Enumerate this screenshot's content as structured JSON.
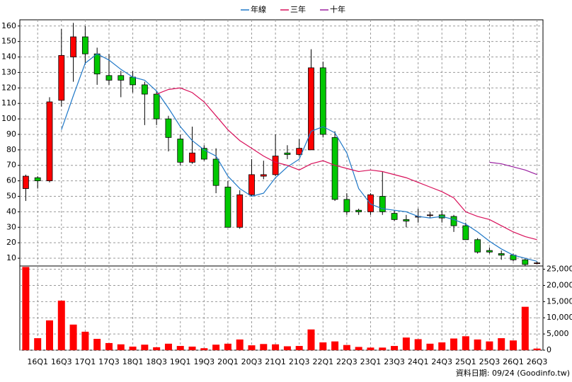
{
  "chart_data": [
    {
      "type": "candlestick",
      "categories": [
        null,
        "16Q1",
        null,
        "16Q3",
        null,
        "17Q1",
        null,
        "17Q3",
        null,
        "18Q1",
        null,
        "18Q3",
        null,
        "19Q1",
        null,
        "19Q3",
        null,
        "20Q1",
        null,
        "20Q3",
        null,
        "21Q1",
        null,
        "21Q3",
        null,
        "22Q1",
        null,
        "22Q3",
        null,
        "23Q1",
        null,
        "23Q3",
        null,
        "24Q1",
        null,
        "24Q3",
        null,
        "25Q1",
        null,
        "25Q3",
        null,
        "26Q1",
        null,
        "26Q3"
      ],
      "open": [
        55,
        62,
        60,
        112,
        140,
        153,
        142,
        128,
        128,
        127,
        122,
        116,
        100,
        87,
        72,
        81,
        74,
        56,
        30,
        51,
        63,
        64,
        78,
        77,
        80,
        133,
        88,
        48,
        41,
        40,
        50,
        39,
        35,
        37,
        38,
        38,
        37,
        31,
        22,
        15,
        13,
        12,
        9,
        7
      ],
      "close": [
        63,
        60,
        111,
        141,
        153,
        142,
        129,
        125,
        125,
        122,
        116,
        100,
        88,
        72,
        78,
        74,
        57,
        30,
        51,
        64,
        64,
        76,
        77,
        81,
        133,
        90,
        48,
        40,
        40,
        51,
        40,
        35,
        34,
        37,
        38,
        36,
        31,
        22,
        14,
        14,
        12,
        9,
        6,
        7
      ],
      "high": [
        64,
        63,
        114,
        158,
        162,
        160,
        146,
        142,
        131,
        131,
        124,
        118,
        102,
        90,
        95,
        83,
        81,
        60,
        54,
        74,
        73,
        90,
        83,
        87,
        145,
        137,
        92,
        52,
        42,
        52,
        66,
        41,
        38,
        42,
        40,
        41,
        38,
        33,
        23,
        17,
        15,
        13,
        10,
        8
      ],
      "low": [
        47,
        55,
        59,
        108,
        124,
        135,
        122,
        122,
        114,
        117,
        96,
        96,
        79,
        70,
        71,
        73,
        52,
        30,
        29,
        50,
        61,
        63,
        74,
        76,
        80,
        88,
        47,
        38,
        38,
        38,
        38,
        34,
        30,
        33,
        36,
        33,
        27,
        22,
        13,
        13,
        9,
        8,
        5,
        6
      ],
      "up_color": "#ff0000",
      "down_color": "#00c800",
      "series": [
        {
          "name": "年線",
          "color": "#1f78c8",
          "values": [
            null,
            null,
            null,
            93,
            115,
            136,
            142,
            138,
            132,
            127,
            125,
            118,
            107,
            95,
            86,
            80,
            76,
            63,
            55,
            50,
            52,
            62,
            69,
            74,
            92,
            95,
            91,
            78,
            55,
            45,
            42,
            41,
            40,
            37,
            36,
            37,
            35,
            32,
            27,
            21,
            16,
            12,
            10,
            8
          ]
        },
        {
          "name": "三年",
          "color": "#d8105a",
          "values": [
            null,
            null,
            null,
            null,
            null,
            null,
            null,
            null,
            null,
            null,
            null,
            116,
            119,
            120,
            117,
            111,
            102,
            93,
            86,
            81,
            76,
            72,
            70,
            67,
            71,
            73,
            70,
            68,
            66,
            67,
            66,
            64,
            62,
            59,
            56,
            53,
            49,
            40,
            37,
            35,
            31,
            27,
            24,
            22
          ]
        },
        {
          "name": "十年",
          "color": "#9a20a0",
          "values": [
            null,
            null,
            null,
            null,
            null,
            null,
            null,
            null,
            null,
            null,
            null,
            null,
            null,
            null,
            null,
            null,
            null,
            null,
            null,
            null,
            null,
            null,
            null,
            null,
            null,
            null,
            null,
            null,
            null,
            null,
            null,
            null,
            null,
            null,
            null,
            null,
            null,
            null,
            null,
            72,
            71,
            69,
            67,
            64
          ]
        }
      ],
      "ylim": [
        5,
        164
      ],
      "yticks": [
        10,
        20,
        30,
        40,
        50,
        60,
        70,
        80,
        90,
        100,
        110,
        120,
        130,
        140,
        150,
        160
      ],
      "grid": true
    },
    {
      "type": "bar",
      "values": [
        25700,
        3700,
        9200,
        15300,
        7900,
        5700,
        3500,
        2200,
        1800,
        1100,
        1700,
        900,
        2000,
        1300,
        1100,
        600,
        1700,
        2000,
        3300,
        1500,
        1900,
        1800,
        1200,
        1300,
        6400,
        2400,
        2700,
        1600,
        1000,
        800,
        800,
        1300,
        3900,
        3400,
        2000,
        2400,
        3600,
        4300,
        3300,
        2700,
        3700,
        3000,
        13400,
        500
      ],
      "color": "#ff0000",
      "ylim": [
        0,
        26000
      ],
      "yticks": [
        0,
        {
          "value": 5000,
          "label": "5,000"
        },
        {
          "value": 10000,
          "label": "10,000"
        },
        {
          "value": 15000,
          "label": "15,000"
        },
        {
          "value": 20000,
          "label": "20,000"
        },
        {
          "value": 25000,
          "label": "25,000"
        }
      ],
      "grid": true,
      "footnote": "資料日期: 09/24 (Goodinfo.tw)"
    }
  ]
}
